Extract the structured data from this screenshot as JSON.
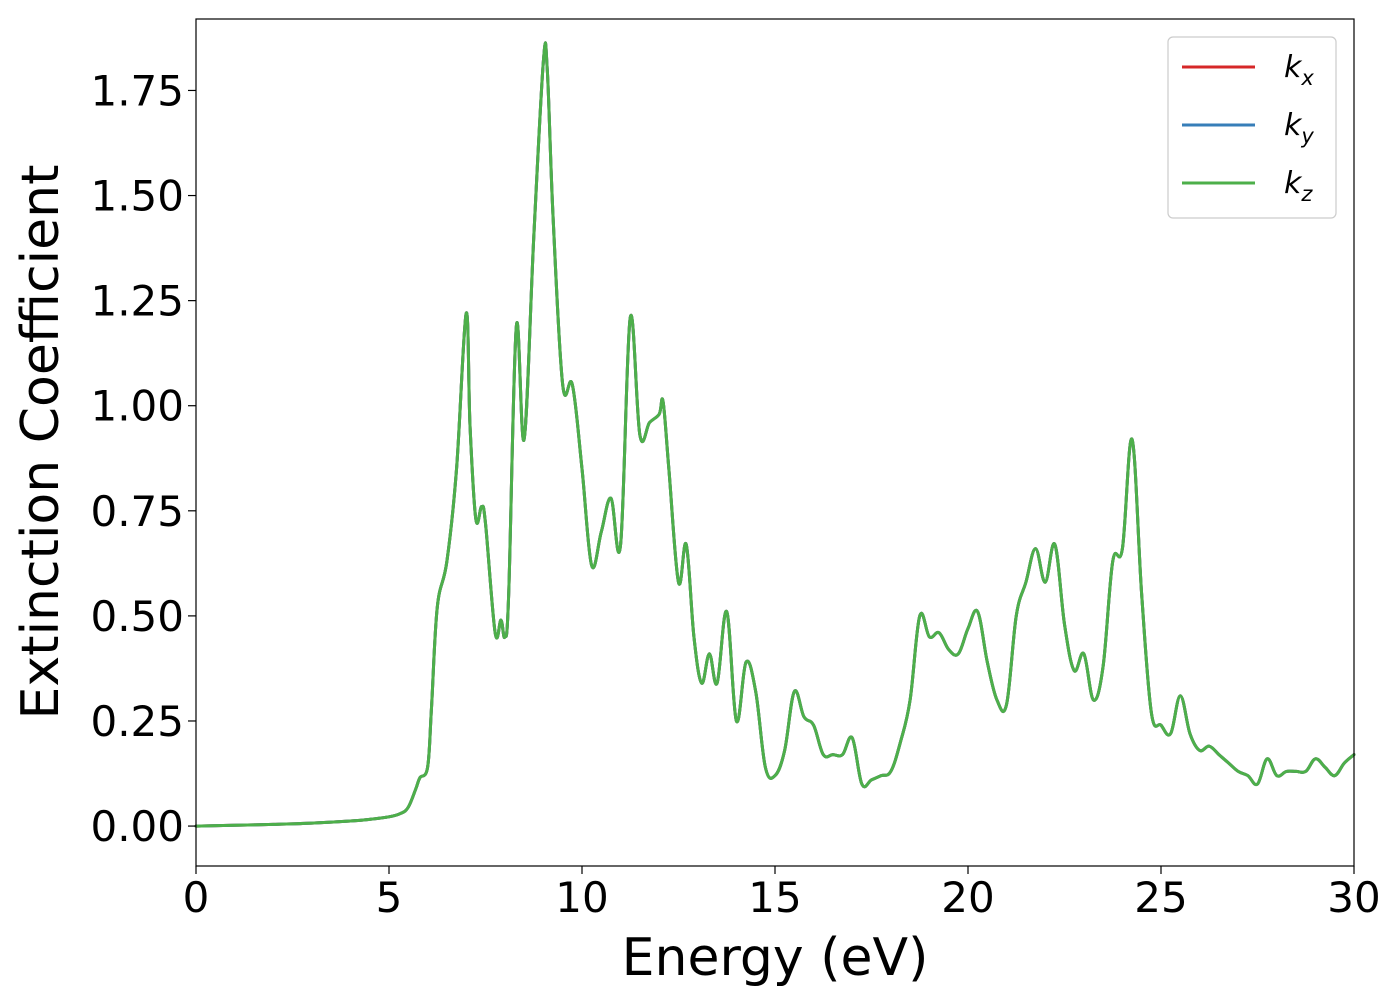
{
  "chart_data": {
    "type": "line",
    "title": "",
    "xlabel": "Energy (eV)",
    "ylabel": "Extinction Coefficient",
    "xlim": [
      0,
      30
    ],
    "ylim": [
      -0.095,
      1.92
    ],
    "xticks": [
      0,
      5,
      10,
      15,
      20,
      25,
      30
    ],
    "xtick_labels": [
      "0",
      "5",
      "10",
      "15",
      "20",
      "25",
      "30"
    ],
    "yticks": [
      0.0,
      0.25,
      0.5,
      0.75,
      1.0,
      1.25,
      1.5,
      1.75
    ],
    "ytick_labels": [
      "0.00",
      "0.25",
      "0.50",
      "0.75",
      "1.00",
      "1.25",
      "1.50",
      "1.75"
    ],
    "grid": false,
    "legend_position": "top-right",
    "x": [
      0,
      1,
      2,
      3,
      4,
      4.5,
      5,
      5.3,
      5.5,
      5.7,
      5.8,
      6.0,
      6.1,
      6.25,
      6.5,
      6.75,
      7.0,
      7.1,
      7.25,
      7.4,
      7.5,
      7.75,
      7.9,
      8.0,
      8.1,
      8.3,
      8.5,
      8.75,
      9.0,
      9.1,
      9.25,
      9.5,
      9.75,
      10.0,
      10.25,
      10.5,
      10.75,
      11.0,
      11.25,
      11.5,
      11.75,
      12.0,
      12.1,
      12.25,
      12.5,
      12.7,
      12.9,
      13.1,
      13.3,
      13.5,
      13.75,
      14.0,
      14.25,
      14.5,
      14.75,
      15.0,
      15.25,
      15.5,
      15.75,
      16.0,
      16.25,
      16.5,
      16.75,
      17.0,
      17.25,
      17.5,
      17.75,
      18.0,
      18.25,
      18.5,
      18.75,
      19.0,
      19.25,
      19.5,
      19.75,
      20.0,
      20.25,
      20.5,
      20.75,
      21.0,
      21.25,
      21.5,
      21.75,
      22.0,
      22.25,
      22.5,
      22.75,
      23.0,
      23.25,
      23.5,
      23.75,
      24.0,
      24.25,
      24.5,
      24.75,
      25.0,
      25.25,
      25.5,
      25.75,
      26.0,
      26.25,
      26.5,
      26.75,
      27.0,
      27.25,
      27.5,
      27.75,
      28.0,
      28.25,
      28.5,
      28.75,
      29.0,
      29.25,
      29.5,
      29.75,
      30.0
    ],
    "series": [
      {
        "name": "k_x",
        "color": "#d62728",
        "values": [
          0.0,
          0.002,
          0.004,
          0.007,
          0.012,
          0.016,
          0.022,
          0.03,
          0.045,
          0.09,
          0.115,
          0.14,
          0.28,
          0.52,
          0.63,
          0.85,
          1.22,
          0.95,
          0.73,
          0.76,
          0.72,
          0.46,
          0.49,
          0.45,
          0.55,
          1.19,
          0.92,
          1.4,
          1.82,
          1.8,
          1.45,
          1.05,
          1.05,
          0.85,
          0.62,
          0.7,
          0.78,
          0.67,
          1.21,
          0.93,
          0.96,
          0.98,
          1.01,
          0.85,
          0.58,
          0.67,
          0.45,
          0.34,
          0.41,
          0.34,
          0.51,
          0.25,
          0.39,
          0.32,
          0.14,
          0.12,
          0.18,
          0.32,
          0.26,
          0.24,
          0.17,
          0.17,
          0.17,
          0.21,
          0.1,
          0.11,
          0.12,
          0.13,
          0.2,
          0.3,
          0.5,
          0.45,
          0.46,
          0.42,
          0.41,
          0.47,
          0.51,
          0.39,
          0.3,
          0.29,
          0.5,
          0.58,
          0.66,
          0.58,
          0.67,
          0.48,
          0.37,
          0.41,
          0.3,
          0.38,
          0.63,
          0.66,
          0.92,
          0.55,
          0.27,
          0.24,
          0.22,
          0.31,
          0.22,
          0.18,
          0.19,
          0.17,
          0.15,
          0.13,
          0.12,
          0.1,
          0.16,
          0.12,
          0.13,
          0.13,
          0.13,
          0.16,
          0.14,
          0.12,
          0.15,
          0.17
        ]
      },
      {
        "name": "k_y",
        "color": "#377eb8",
        "values": [
          0.0,
          0.002,
          0.004,
          0.007,
          0.012,
          0.016,
          0.022,
          0.03,
          0.045,
          0.09,
          0.115,
          0.14,
          0.28,
          0.52,
          0.63,
          0.85,
          1.22,
          0.95,
          0.73,
          0.76,
          0.72,
          0.46,
          0.49,
          0.45,
          0.55,
          1.19,
          0.92,
          1.4,
          1.82,
          1.8,
          1.45,
          1.05,
          1.05,
          0.85,
          0.62,
          0.7,
          0.78,
          0.67,
          1.21,
          0.93,
          0.96,
          0.98,
          1.01,
          0.85,
          0.58,
          0.67,
          0.45,
          0.34,
          0.41,
          0.34,
          0.51,
          0.25,
          0.39,
          0.32,
          0.14,
          0.12,
          0.18,
          0.32,
          0.26,
          0.24,
          0.17,
          0.17,
          0.17,
          0.21,
          0.1,
          0.11,
          0.12,
          0.13,
          0.2,
          0.3,
          0.5,
          0.45,
          0.46,
          0.42,
          0.41,
          0.47,
          0.51,
          0.39,
          0.3,
          0.29,
          0.5,
          0.58,
          0.66,
          0.58,
          0.67,
          0.48,
          0.37,
          0.41,
          0.3,
          0.38,
          0.63,
          0.66,
          0.92,
          0.55,
          0.27,
          0.24,
          0.22,
          0.31,
          0.22,
          0.18,
          0.19,
          0.17,
          0.15,
          0.13,
          0.12,
          0.1,
          0.16,
          0.12,
          0.13,
          0.13,
          0.13,
          0.16,
          0.14,
          0.12,
          0.15,
          0.17
        ]
      },
      {
        "name": "k_z",
        "color": "#4daf4a",
        "values": [
          0.0,
          0.002,
          0.004,
          0.007,
          0.012,
          0.016,
          0.022,
          0.03,
          0.045,
          0.09,
          0.115,
          0.14,
          0.28,
          0.52,
          0.63,
          0.85,
          1.22,
          0.95,
          0.73,
          0.76,
          0.72,
          0.46,
          0.49,
          0.45,
          0.55,
          1.19,
          0.92,
          1.4,
          1.82,
          1.8,
          1.45,
          1.05,
          1.05,
          0.85,
          0.62,
          0.7,
          0.78,
          0.67,
          1.21,
          0.93,
          0.96,
          0.98,
          1.01,
          0.85,
          0.58,
          0.67,
          0.45,
          0.34,
          0.41,
          0.34,
          0.51,
          0.25,
          0.39,
          0.32,
          0.14,
          0.12,
          0.18,
          0.32,
          0.26,
          0.24,
          0.17,
          0.17,
          0.17,
          0.21,
          0.1,
          0.11,
          0.12,
          0.13,
          0.2,
          0.3,
          0.5,
          0.45,
          0.46,
          0.42,
          0.41,
          0.47,
          0.51,
          0.39,
          0.3,
          0.29,
          0.5,
          0.58,
          0.66,
          0.58,
          0.67,
          0.48,
          0.37,
          0.41,
          0.3,
          0.38,
          0.63,
          0.66,
          0.92,
          0.55,
          0.27,
          0.24,
          0.22,
          0.31,
          0.22,
          0.18,
          0.19,
          0.17,
          0.15,
          0.13,
          0.12,
          0.1,
          0.16,
          0.12,
          0.13,
          0.13,
          0.13,
          0.16,
          0.14,
          0.12,
          0.15,
          0.17
        ]
      }
    ],
    "legend": [
      {
        "base": "k",
        "sub": "x"
      },
      {
        "base": "k",
        "sub": "y"
      },
      {
        "base": "k",
        "sub": "z"
      }
    ]
  }
}
